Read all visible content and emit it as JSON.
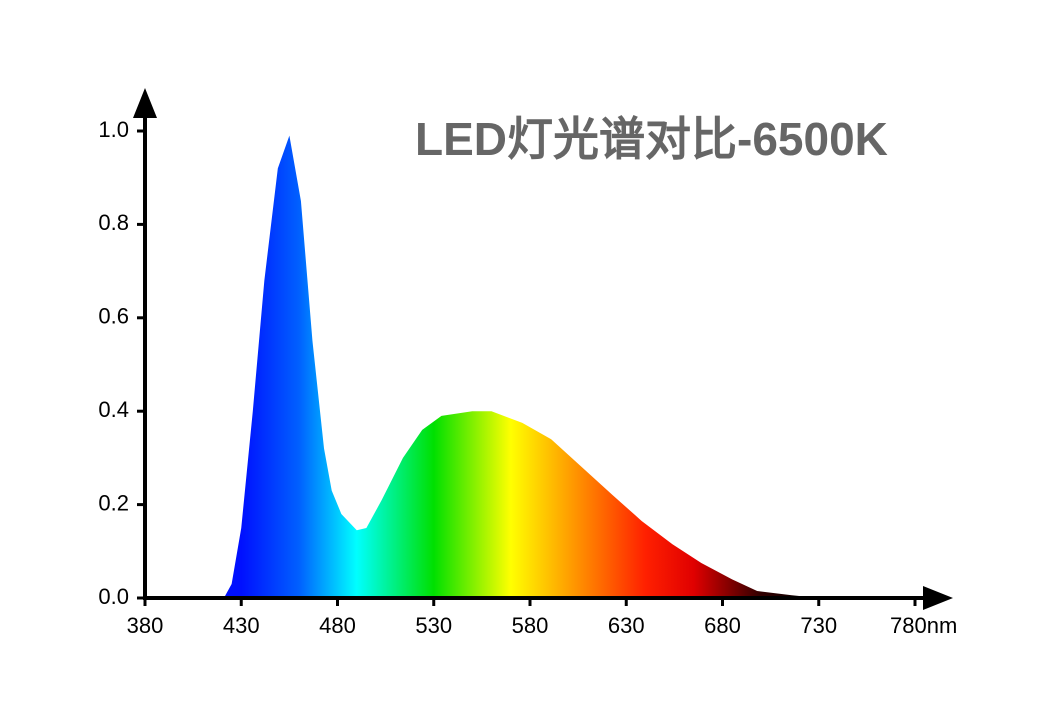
{
  "chart_data": {
    "type": "area",
    "title": "LED灯光谱对比-6500K",
    "x": [
      421,
      425,
      430,
      436,
      442,
      449,
      455,
      461,
      467,
      473,
      477,
      482,
      490,
      495,
      503,
      514,
      524,
      534,
      550,
      560,
      576,
      591,
      607,
      623,
      638,
      654,
      669,
      685,
      698,
      716,
      730
    ],
    "values": [
      0,
      0.03,
      0.15,
      0.4,
      0.68,
      0.92,
      0.99,
      0.85,
      0.55,
      0.32,
      0.23,
      0.18,
      0.145,
      0.15,
      0.21,
      0.3,
      0.36,
      0.39,
      0.4,
      0.4,
      0.375,
      0.34,
      0.28,
      0.22,
      0.165,
      0.115,
      0.075,
      0.04,
      0.015,
      0.006,
      0
    ],
    "fill_gradient": [
      {
        "x": 430,
        "color": "#0010ff"
      },
      {
        "x": 460,
        "color": "#0060ff"
      },
      {
        "x": 490,
        "color": "#00ffff"
      },
      {
        "x": 530,
        "color": "#00e000"
      },
      {
        "x": 570,
        "color": "#ffff00"
      },
      {
        "x": 600,
        "color": "#ffa000"
      },
      {
        "x": 640,
        "color": "#ff2000"
      },
      {
        "x": 665,
        "color": "#e00000"
      },
      {
        "x": 700,
        "color": "#300000"
      },
      {
        "x": 730,
        "color": "#000000"
      }
    ],
    "xlim": [
      380,
      780
    ],
    "ylim": [
      0,
      1
    ],
    "xticks": [
      380,
      430,
      480,
      530,
      580,
      630,
      680,
      730,
      {
        "value": 780,
        "label": "780nm"
      }
    ],
    "yticks": [
      {
        "value": 0,
        "label": "0.0"
      },
      {
        "value": 0.2,
        "label": "0.2"
      },
      {
        "value": 0.4,
        "label": "0.4"
      },
      {
        "value": 0.6,
        "label": "0.6"
      },
      {
        "value": 0.8,
        "label": "0.8"
      },
      {
        "value": 1,
        "label": "1.0"
      }
    ]
  }
}
